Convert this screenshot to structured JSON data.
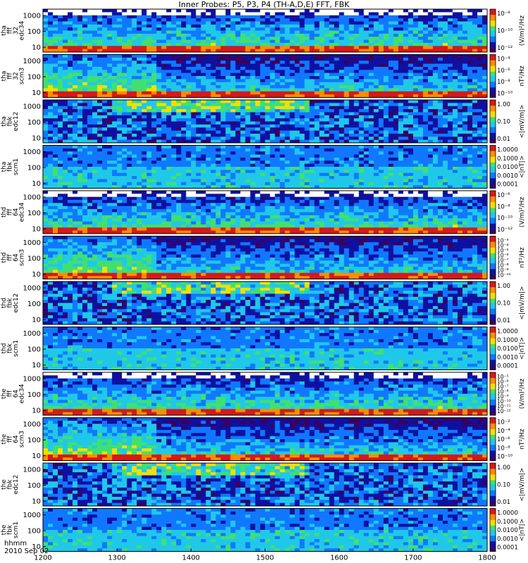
{
  "chart_data": {
    "type": "heatmap",
    "title": "Inner Probes: P5, P3, P4 (TH-A,D,E) FFT, FBK",
    "x_ticks": [
      "1200",
      "1300",
      "1400",
      "1500",
      "1600",
      "1700",
      "1800"
    ],
    "x_range": [
      1200,
      1800
    ],
    "footer": {
      "label": "hhmm",
      "date": "2010 Sep 02"
    },
    "panels": [
      {
        "ylabel": [
          "tha",
          "fff",
          "32",
          "edc34"
        ],
        "yticks": [
          "1000",
          "100",
          "10"
        ],
        "yscale": "log",
        "cbar_ticks": [
          "10⁻⁸",
          "10⁻¹⁰",
          "10⁻¹²"
        ],
        "cbar_label": "(V/m)²/Hz",
        "colors": [
          "#d81818",
          "#ff8c00",
          "#f0e000",
          "#40e070",
          "#20c8e8",
          "#1078ff",
          "#1010a0",
          "#3a0060"
        ]
      },
      {
        "ylabel": [
          "tha",
          "fff",
          "32",
          "scm3"
        ],
        "yticks": [
          "1000",
          "100",
          "10"
        ],
        "yscale": "log",
        "cbar_ticks": [
          "10⁻⁴",
          "10⁻⁶",
          "10⁻⁸",
          "10⁻¹⁰"
        ],
        "cbar_label": "nT²/Hz"
      },
      {
        "ylabel": [
          "tha",
          "fbk",
          "edc12"
        ],
        "yticks": [
          "1000",
          "100",
          "10"
        ],
        "yscale": "log",
        "cbar_ticks": [
          "1.00",
          "0.10",
          "0.01"
        ],
        "cbar_label": "<|mV/m|>"
      },
      {
        "ylabel": [
          "tha",
          "fbk",
          "scm1"
        ],
        "yticks": [
          "1000",
          "100",
          "10"
        ],
        "yscale": "log",
        "cbar_ticks": [
          "1.0000",
          "0.1000",
          "0.0100",
          "0.0010",
          "0.0001"
        ],
        "cbar_label": "<|nT|>"
      },
      {
        "ylabel": [
          "thd",
          "fff",
          "64",
          "edc34"
        ],
        "yticks": [
          "1000",
          "100",
          "10"
        ],
        "yscale": "log",
        "cbar_ticks": [
          "10⁻⁶",
          "10⁻⁸",
          "10⁻¹⁰",
          "10⁻¹²"
        ],
        "cbar_label": "(V/m)²/Hz"
      },
      {
        "ylabel": [
          "thd",
          "fff",
          "64",
          "scm3"
        ],
        "yticks": [
          "1000",
          "100",
          "10"
        ],
        "yscale": "log",
        "cbar_ticks": [
          "10⁻³",
          "10⁻⁴",
          "10⁻⁵",
          "10⁻⁶",
          "10⁻⁷",
          "10⁻⁸",
          "10⁻⁹",
          "10⁻¹⁰"
        ],
        "cbar_label": "nT²/Hz"
      },
      {
        "ylabel": [
          "thd",
          "fbk",
          "edc12"
        ],
        "yticks": [
          "1000",
          "100",
          "10"
        ],
        "yscale": "log",
        "cbar_ticks": [
          "1.00",
          "0.10",
          "0.01"
        ],
        "cbar_label": "<|mV/m|>"
      },
      {
        "ylabel": [
          "thd",
          "fbk",
          "scm1"
        ],
        "yticks": [
          "1000",
          "100",
          "10"
        ],
        "yscale": "log",
        "cbar_ticks": [
          "1.0000",
          "0.1000",
          "0.0100",
          "0.0010",
          "0.0001"
        ],
        "cbar_label": "<|nT|>"
      },
      {
        "ylabel": [
          "the",
          "fff",
          "64",
          "edc34"
        ],
        "yticks": [
          "1000",
          "100",
          "10"
        ],
        "yscale": "log",
        "cbar_ticks": [
          "10⁻⁵",
          "10⁻⁶",
          "10⁻⁷",
          "10⁻⁸",
          "10⁻⁹",
          "10⁻¹⁰",
          "10⁻¹¹",
          "10⁻¹²"
        ],
        "cbar_label": "(V/m)²/Hz"
      },
      {
        "ylabel": [
          "the",
          "fff",
          "64",
          "scm3"
        ],
        "yticks": [
          "1000",
          "100",
          "10"
        ],
        "yscale": "log",
        "cbar_ticks": [
          "10⁻²",
          "10⁻⁴",
          "10⁻⁶",
          "10⁻⁸",
          "10⁻¹⁰"
        ],
        "cbar_label": "nT²/Hz"
      },
      {
        "ylabel": [
          "the",
          "fbk",
          "edc12"
        ],
        "yticks": [
          "1000",
          "100",
          "10"
        ],
        "yscale": "log",
        "cbar_ticks": [
          "1.00",
          "0.10",
          "0.01"
        ],
        "cbar_label": "<|mV/m|>"
      },
      {
        "ylabel": [
          "the",
          "fbk",
          "scm1"
        ],
        "yticks": [
          "1000",
          "100",
          "10"
        ],
        "yscale": "log",
        "cbar_ticks": [
          "1.0000",
          "0.1000",
          "0.0100",
          "0.0010",
          "0.0001"
        ],
        "cbar_label": "<|nT|>"
      }
    ]
  },
  "colormap": [
    "#ffffff",
    "#3a0060",
    "#1010a0",
    "#1078ff",
    "#20c8e8",
    "#40e070",
    "#f0e000",
    "#ff8c00",
    "#d81818"
  ]
}
